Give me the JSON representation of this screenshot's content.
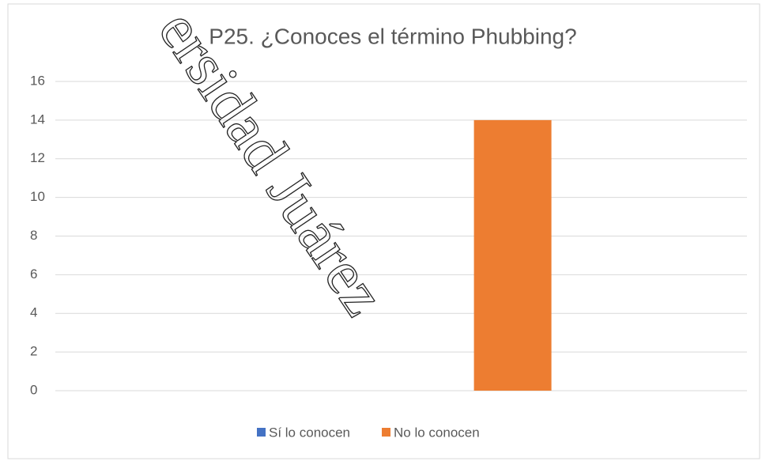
{
  "chart_data": {
    "type": "bar",
    "title": "P25. ¿Conoces el término Phubbing?",
    "categories": [
      null
    ],
    "series": [
      {
        "name": "Sí lo conocen",
        "color": "#4472c4",
        "values": [
          0
        ]
      },
      {
        "name": "No lo conocen",
        "color": "#ed7d31",
        "values": [
          14
        ]
      }
    ],
    "ylim": [
      0,
      16
    ],
    "yticks": [
      0,
      2,
      4,
      6,
      8,
      10,
      12,
      14,
      16
    ],
    "grid": true,
    "legend": "bottom",
    "watermark": "ersidad Juárez"
  }
}
